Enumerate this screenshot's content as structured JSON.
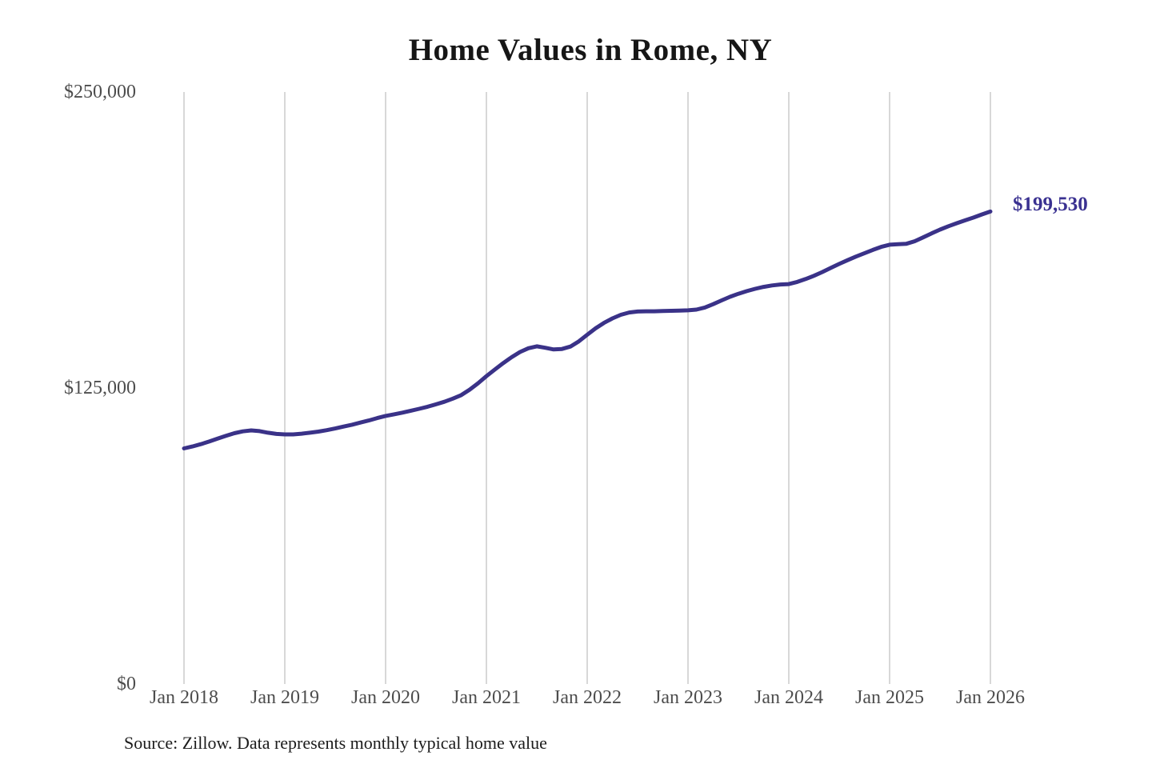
{
  "title": "Home Values in Rome, NY",
  "end_label": "$199,530",
  "source_note": "Source: Zillow. Data represents monthly typical home value",
  "colors": {
    "line": "#3a3288",
    "annotation": "#3a3191",
    "grid": "#cccccc",
    "axis_text": "#4d4d4d",
    "title_text": "#161616",
    "background": "#ffffff"
  },
  "y_axis": {
    "tick_labels": [
      "$250,000",
      "$125,000",
      "$0"
    ]
  },
  "x_axis": {
    "tick_labels": [
      "Jan 2018",
      "Jan 2019",
      "Jan 2020",
      "Jan 2021",
      "Jan 2022",
      "Jan 2023",
      "Jan 2024",
      "Jan 2025",
      "Jan 2026"
    ]
  },
  "chart_data": {
    "type": "line",
    "title": "Home Values in Rome, NY",
    "series_name": "Monthly typical home value",
    "x_start": "2018-01",
    "x_end": "2026-01",
    "x_frequency": "monthly",
    "x_tick_labels": [
      "Jan 2018",
      "Jan 2019",
      "Jan 2020",
      "Jan 2021",
      "Jan 2022",
      "Jan 2023",
      "Jan 2024",
      "Jan 2025",
      "Jan 2026"
    ],
    "values": [
      99500,
      100300,
      101300,
      102400,
      103600,
      104800,
      105900,
      106700,
      107100,
      106800,
      106100,
      105600,
      105400,
      105400,
      105700,
      106100,
      106600,
      107200,
      107900,
      108700,
      109500,
      110400,
      111300,
      112300,
      113200,
      113900,
      114600,
      115400,
      116200,
      117100,
      118100,
      119200,
      120500,
      122000,
      124300,
      127000,
      130000,
      132800,
      135500,
      138000,
      140200,
      141800,
      142600,
      142000,
      141300,
      141500,
      142500,
      144700,
      147500,
      150200,
      152500,
      154400,
      155900,
      156900,
      157300,
      157400,
      157400,
      157500,
      157600,
      157700,
      157800,
      158100,
      159000,
      160400,
      162000,
      163500,
      164800,
      165900,
      166900,
      167700,
      168300,
      168700,
      168900,
      169800,
      171000,
      172400,
      174000,
      175700,
      177400,
      179000,
      180500,
      181900,
      183300,
      184600,
      185500,
      185700,
      185900,
      187000,
      188600,
      190300,
      191900,
      193300,
      194600,
      195800,
      197000,
      198300,
      199530
    ],
    "ylim": [
      0,
      250000
    ],
    "yticks": [
      0,
      125000,
      250000
    ],
    "grid": "vertical-only",
    "legend": "none",
    "end_annotation": "$199,530",
    "line_color": "#3a3288",
    "source": "Source: Zillow. Data represents monthly typical home value"
  }
}
